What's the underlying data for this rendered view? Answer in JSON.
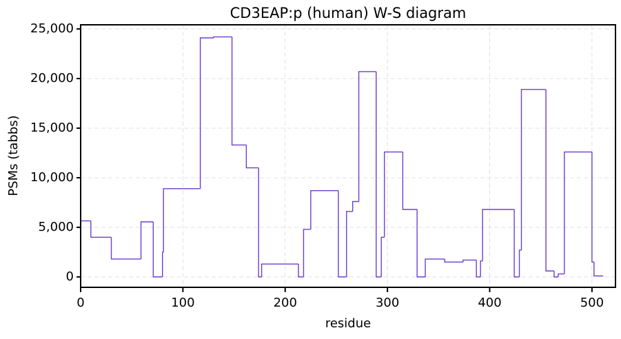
{
  "chart_data": {
    "type": "line",
    "step": "post",
    "title": "CD3EAP:p (human) W-S diagram",
    "x_label": "residue",
    "y_label": "PSMs (tabbs)",
    "x": [
      0,
      10,
      30,
      59,
      71,
      80,
      81,
      117,
      130,
      148,
      162,
      174,
      177,
      213,
      218,
      225,
      252,
      260,
      266,
      272,
      289,
      294,
      297,
      315,
      329,
      337,
      356,
      374,
      387,
      391,
      393,
      424,
      429,
      431,
      455,
      463,
      467,
      473,
      500,
      502,
      511
    ],
    "series": [
      {
        "name": "CD3EAP:p",
        "color": "#6a3fd0",
        "values": [
          5650,
          4000,
          1800,
          5550,
          0,
          2500,
          8900,
          24100,
          24200,
          13300,
          11000,
          0,
          1300,
          0,
          4800,
          8700,
          0,
          6600,
          7600,
          20700,
          0,
          4000,
          12600,
          6800,
          0,
          1800,
          1500,
          1700,
          0,
          1600,
          6800,
          0,
          2700,
          18900,
          600,
          0,
          300,
          12600,
          1500,
          100,
          100
        ]
      }
    ],
    "xlim": [
      0,
      523
    ],
    "ylim": [
      -1050,
      25420
    ],
    "xticks": [
      0,
      100,
      200,
      300,
      400,
      500
    ],
    "yticks": [
      0,
      {
        "value": 5000,
        "label": "5,000"
      },
      {
        "value": 10000,
        "label": "10,000"
      },
      {
        "value": 15000,
        "label": "15,000"
      },
      {
        "value": 20000,
        "label": "20,000"
      },
      {
        "value": 25000,
        "label": "25,000"
      }
    ],
    "grid": true
  }
}
